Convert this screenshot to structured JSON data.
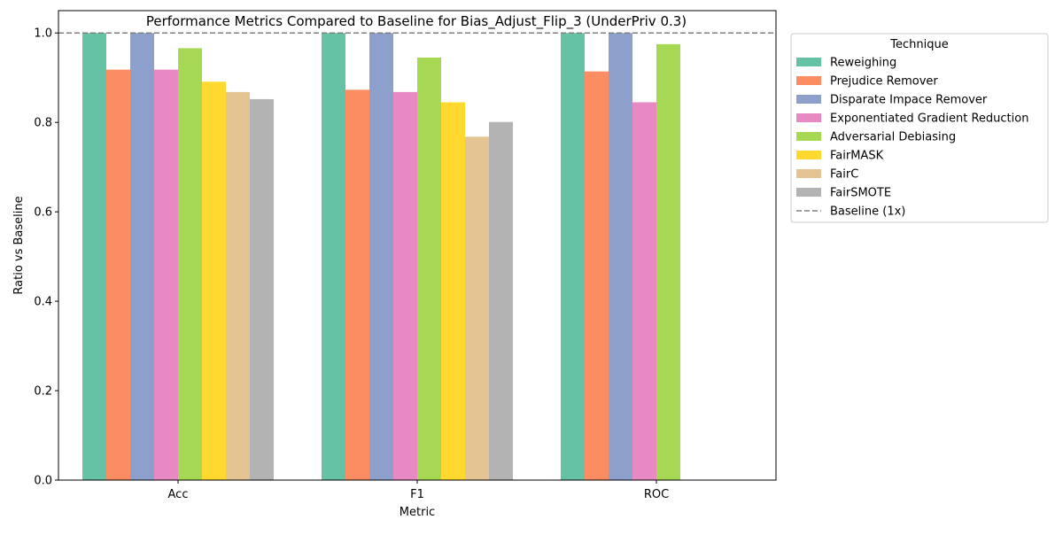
{
  "chart_data": {
    "type": "bar",
    "title": "Performance Metrics Compared to Baseline for Bias_Adjust_Flip_3 (UnderPriv 0.3)",
    "xlabel": "Metric",
    "ylabel": "Ratio vs Baseline",
    "categories": [
      "Acc",
      "F1",
      "ROC"
    ],
    "ylim": [
      0,
      1.05
    ],
    "yticks": [
      "0.0",
      "0.2",
      "0.4",
      "0.6",
      "0.8",
      "1.0"
    ],
    "grid": false,
    "baseline": {
      "value": 1.0,
      "label": "Baseline (1x)",
      "color": "#808080"
    },
    "legend": {
      "title": "Technique",
      "placement": "outside-top-right"
    },
    "series": [
      {
        "name": "Reweighing",
        "color": "#66c2a5",
        "values": [
          1.0,
          1.0,
          1.0
        ]
      },
      {
        "name": "Prejudice Remover",
        "color": "#fc8d62",
        "values": [
          0.918,
          0.873,
          0.914
        ]
      },
      {
        "name": "Disparate Impace Remover",
        "color": "#8da0cb",
        "values": [
          1.0,
          1.0,
          1.0
        ]
      },
      {
        "name": "Exponentiated Gradient Reduction",
        "color": "#e78ac3",
        "values": [
          0.918,
          0.868,
          0.845
        ]
      },
      {
        "name": "Adversarial Debiasing",
        "color": "#a6d854",
        "values": [
          0.966,
          0.945,
          0.975
        ]
      },
      {
        "name": "FairMASK",
        "color": "#ffd92f",
        "values": [
          0.891,
          0.845,
          null
        ]
      },
      {
        "name": "FairC",
        "color": "#e5c494",
        "values": [
          0.868,
          0.768,
          null
        ]
      },
      {
        "name": "FairSMOTE",
        "color": "#b3b3b3",
        "values": [
          0.852,
          0.801,
          null
        ]
      }
    ]
  }
}
